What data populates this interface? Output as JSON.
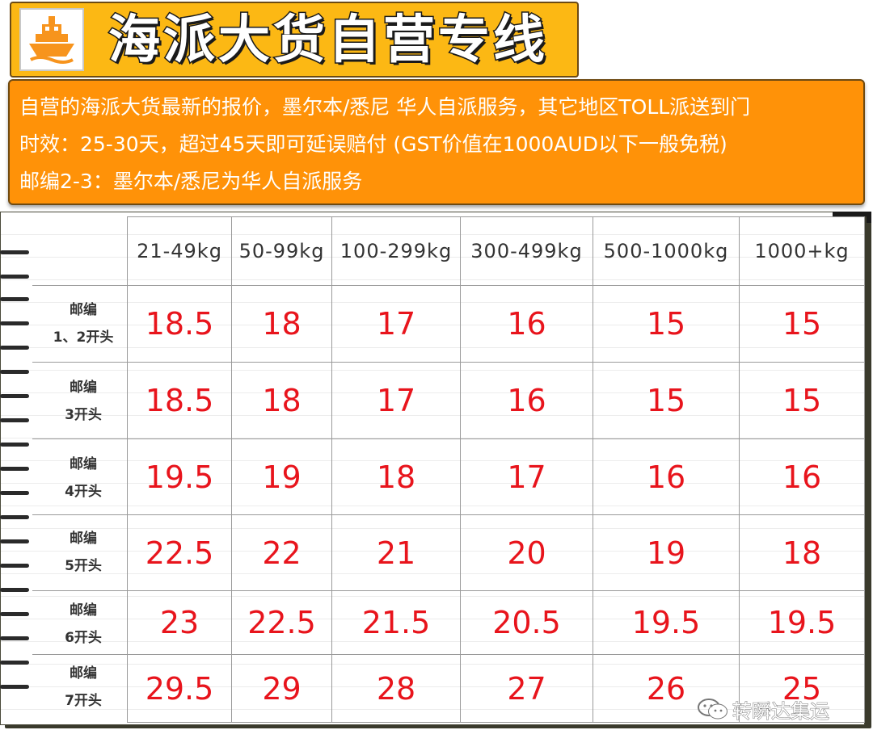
{
  "header": {
    "title": "海派大货自营专线",
    "logo_icon": "ship-icon"
  },
  "info": {
    "line1": "自营的海派大货最新的报价，墨尔本/悉尼 华人自派服务，其它地区TOLL派送到门",
    "line2": "时效：25-30天，超过45天即可延误赔付 (GST价值在1000AUD以下一般免税)",
    "line3": "邮编2-3：墨尔本/悉尼为华人自派服务"
  },
  "table": {
    "columns": [
      "21-49kg",
      "50-99kg",
      "100-299kg",
      "300-499kg",
      "500-1000kg",
      "1000+kg"
    ],
    "rows": [
      {
        "label1": "邮编",
        "label2": "1、2开头",
        "values": [
          "18.5",
          "18",
          "17",
          "16",
          "15",
          "15"
        ]
      },
      {
        "label1": "邮编",
        "label2": "3开头",
        "values": [
          "18.5",
          "18",
          "17",
          "16",
          "15",
          "15"
        ]
      },
      {
        "label1": "邮编",
        "label2": "4开头",
        "values": [
          "19.5",
          "19",
          "18",
          "17",
          "16",
          "16"
        ]
      },
      {
        "label1": "邮编",
        "label2": "5开头",
        "values": [
          "22.5",
          "22",
          "21",
          "20",
          "19",
          "18"
        ]
      },
      {
        "label1": "邮编",
        "label2": "6开头",
        "values": [
          "23",
          "22.5",
          "21.5",
          "20.5",
          "19.5",
          "19.5"
        ]
      },
      {
        "label1": "邮编",
        "label2": "7开头",
        "values": [
          "29.5",
          "29",
          "28",
          "27",
          "26",
          "25"
        ]
      }
    ]
  },
  "watermark": {
    "text": "转瞬达集运",
    "icon": "wechat-icon"
  },
  "colors": {
    "title_bg": "#fcb814",
    "info_bg": "#ff9208",
    "price_text": "#e8141c"
  }
}
